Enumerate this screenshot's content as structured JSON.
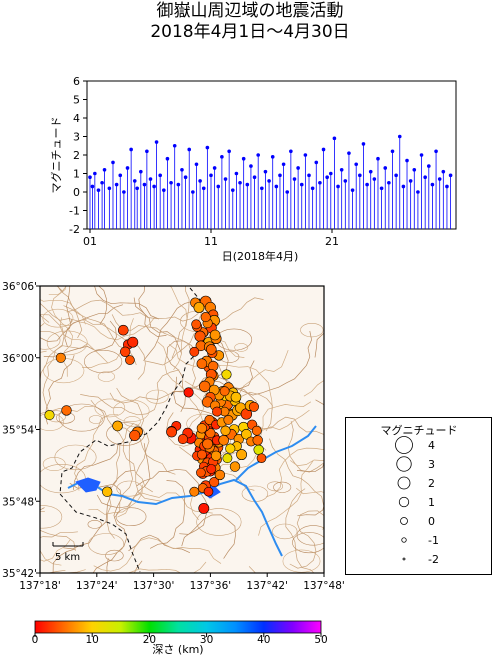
{
  "title": {
    "line1": "御嶽山周辺域の地震活動",
    "line2": "2018年4月1日〜4月30日"
  },
  "chart_data": [
    {
      "type": "stem",
      "title": "",
      "ylabel": "マグニチュード",
      "xlabel": "日(2018年4月)",
      "ylim": [
        -2,
        6
      ],
      "yticks": [
        "-2",
        "-1",
        "0",
        "1",
        "2",
        "3",
        "4",
        "5",
        "6"
      ],
      "xlim": [
        1,
        31
      ],
      "xticks": [
        {
          "day": 1,
          "label": "01"
        },
        {
          "day": 11,
          "label": "11"
        },
        {
          "day": 21,
          "label": "21"
        }
      ],
      "color": "#0000ff",
      "series": [
        {
          "day": [
            1.0,
            1.2,
            1.4,
            1.7,
            2.0,
            2.2,
            2.6,
            2.9,
            3.2,
            3.5,
            3.8,
            4.1,
            4.4,
            4.7,
            4.9,
            5.2,
            5.5,
            5.7,
            6.0,
            6.3,
            6.5,
            6.8,
            7.1,
            7.4,
            7.7,
            8.0,
            8.3,
            8.6,
            8.9,
            9.2,
            9.5,
            9.8,
            10.1,
            10.4,
            10.7,
            11.0,
            11.3,
            11.6,
            11.9,
            12.2,
            12.5,
            12.8,
            13.1,
            13.4,
            13.7,
            14.0,
            14.3,
            14.6,
            14.9,
            15.2,
            15.5,
            15.8,
            16.1,
            16.4,
            16.7,
            17.0,
            17.3,
            17.6,
            17.9,
            18.2,
            18.5,
            18.8,
            19.1,
            19.4,
            19.7,
            20.0,
            20.3,
            20.6,
            20.9,
            21.2,
            21.5,
            21.8,
            22.1,
            22.4,
            22.7,
            23.0,
            23.3,
            23.6,
            23.9,
            24.2,
            24.5,
            24.8,
            25.1,
            25.4,
            25.7,
            26.0,
            26.3,
            26.6,
            26.9,
            27.2,
            27.5,
            27.8,
            28.1,
            28.4,
            28.7,
            29.0,
            29.3,
            29.6,
            29.9,
            30.2,
            30.5,
            30.8
          ],
          "magnitude": [
            0.8,
            0.3,
            1.0,
            0.1,
            0.5,
            1.2,
            0.2,
            1.6,
            0.4,
            0.9,
            0.0,
            1.3,
            2.3,
            0.6,
            0.2,
            1.1,
            0.4,
            2.2,
            0.7,
            0.3,
            2.7,
            0.9,
            0.1,
            1.8,
            0.5,
            2.5,
            0.4,
            1.2,
            0.8,
            2.3,
            0.0,
            1.5,
            0.6,
            0.2,
            2.4,
            0.9,
            1.3,
            0.3,
            1.9,
            0.7,
            2.2,
            0.1,
            1.0,
            0.5,
            1.8,
            0.4,
            1.4,
            0.8,
            2.0,
            0.2,
            1.1,
            0.6,
            1.9,
            0.3,
            0.9,
            1.5,
            0.0,
            2.2,
            0.7,
            1.3,
            0.4,
            2.0,
            0.9,
            0.2,
            1.6,
            0.5,
            2.3,
            0.8,
            1.0,
            2.9,
            0.3,
            1.2,
            0.6,
            2.1,
            0.1,
            1.5,
            0.9,
            2.6,
            0.4,
            1.1,
            0.7,
            1.8,
            0.2,
            1.3,
            0.5,
            2.2,
            0.9,
            3.0,
            0.3,
            1.7,
            0.6,
            1.2,
            0.0,
            2.0,
            0.8,
            1.4,
            0.4,
            2.2,
            0.7,
            1.1,
            0.3,
            0.9
          ]
        }
      ]
    },
    {
      "type": "scatter",
      "title": "",
      "xlim": [
        "137°18'",
        "137°48'"
      ],
      "ylim": [
        "35°42'",
        "36°06'"
      ],
      "xticks": [
        "137°18'",
        "137°24'",
        "137°30'",
        "137°36'",
        "137°42'",
        "137°48'"
      ],
      "yticks": [
        "36°06'",
        "36°00'",
        "35°54'",
        "35°48'",
        "35°42'"
      ],
      "scale_bar": "5 km",
      "size_legend": {
        "title": "マグニチュード",
        "magnitudes": [
          "4",
          "3",
          "2",
          "1",
          "0",
          "-1",
          "-2"
        ]
      },
      "colorbar": {
        "label": "深さ (km)",
        "ticks": [
          "0",
          "10",
          "20",
          "30",
          "40",
          "50"
        ],
        "range": [
          0,
          50
        ]
      },
      "series": [
        {
          "lon_min": [
            35.5,
            36.0,
            36.2,
            35.2,
            35.8,
            36.4,
            35.6,
            36.1,
            34.9,
            35.4,
            36.3,
            35.9,
            35.1,
            36.6,
            35.7,
            36.0,
            35.3,
            36.5,
            35.8,
            36.2,
            34.6,
            35.0,
            36.8,
            35.6,
            36.3,
            35.9,
            36.7,
            35.5,
            36.1,
            34.8,
            35.2,
            36.4,
            35.7,
            36.0,
            36.9,
            35.4,
            36.2,
            35.1,
            35.8,
            36.5,
            35.3,
            36.0,
            35.6,
            36.7,
            35.9,
            36.3,
            35.0,
            35.7,
            36.1,
            36.6,
            35.5,
            35.2,
            36.4,
            35.8,
            37.0,
            35.4,
            36.2,
            35.9,
            36.6,
            35.1,
            38.0,
            37.4,
            37.8,
            38.6,
            37.1,
            38.3,
            37.6,
            38.9,
            37.9,
            38.4,
            37.3,
            38.1,
            37.7,
            38.7,
            37.5,
            39.2,
            37.2,
            38.5,
            37.9,
            39.5,
            38.2,
            37.6,
            39.0,
            38.8,
            37.4,
            38.1,
            39.3,
            37.8,
            38.6,
            39.8,
            40.4,
            40.9,
            41.1,
            35.4,
            36.3,
            35.8,
            36.9,
            37.5,
            39.8,
            40.2,
            40.6,
            40.3,
            41.0,
            41.4,
            33.9,
            33.6,
            33.1,
            32.4,
            31.9,
            35.5,
            36.0,
            36.3,
            36.4,
            36.1,
            35.7,
            35.2,
            34.9,
            35.8,
            36.6,
            34.6,
            35.0,
            36.9,
            34.3,
            35.6,
            35.1,
            36.2,
            34.4,
            34.8,
            35.5,
            34.5,
            36.5,
            35.9,
            36.3,
            36.1,
            35.9,
            35.4,
            36.4,
            36.0,
            35.7,
            36.5,
            36.7,
            36.1,
            27.3,
            27.0,
            27.5,
            27.8,
            26.8,
            20.2,
            20.8,
            19.0,
            26.2,
            33.7,
            28.3,
            31.9,
            28.0,
            25.1,
            34.3,
            35.3
          ],
          "lat_min": [
            53.5,
            52.9,
            51.8,
            53.0,
            52.1,
            53.4,
            51.6,
            52.4,
            52.3,
            51.3,
            52.7,
            51.9,
            51.5,
            52.0,
            53.8,
            51.1,
            52.7,
            51.4,
            50.9,
            53.1,
            51.8,
            53.6,
            52.5,
            52.2,
            50.8,
            53.3,
            51.5,
            50.6,
            51.6,
            52.9,
            50.3,
            52.2,
            51.2,
            50.5,
            52.9,
            52.6,
            51.0,
            51.9,
            53.9,
            50.8,
            50.9,
            53.7,
            50.5,
            53.1,
            52.5,
            51.3,
            50.4,
            52.8,
            50.7,
            51.8,
            49.3,
            49.1,
            49.6,
            48.8,
            50.2,
            54.3,
            54.6,
            54.8,
            54.4,
            54.1,
            55.3,
            55.7,
            56.1,
            56.4,
            56.3,
            55.2,
            56.8,
            55.6,
            57.5,
            57.1,
            57.2,
            56.8,
            58.6,
            56.7,
            55.5,
            55.8,
            54.6,
            54.0,
            54.8,
            54.2,
            53.6,
            53.9,
            53.2,
            52.6,
            53.1,
            52.4,
            51.9,
            51.6,
            50.9,
            53.6,
            54.4,
            53.9,
            52.3,
            57.7,
            58.5,
            59.2,
            56.9,
            57.2,
            55.3,
            56.0,
            55.9,
            53.0,
            53.1,
            51.6,
            53.3,
            53.7,
            53.2,
            54.3,
            53.9,
            64.7,
            64.2,
            63.6,
            63.1,
            62.5,
            62.9,
            62.1,
            61.8,
            61.3,
            61.6,
            62.6,
            61.0,
            60.2,
            60.5,
            59.7,
            59.5,
            60.4,
            64.6,
            64.2,
            63.4,
            62.8,
            61.9,
            60.9,
            59.3,
            58.6,
            58.0,
            57.6,
            57.3,
            56.7,
            56.3,
            56.0,
            55.5,
            60.7,
            61.1,
            60.5,
            59.8,
            61.3,
            62.3,
            60.0,
            55.6,
            55.2,
            54.3,
            57.1,
            53.8,
            53.8,
            53.5,
            48.8,
            48.8,
            47.4,
            46.0,
            46.5
          ],
          "magnitude": [
            1.4,
            1.1,
            0.8,
            1.6,
            0.9,
            1.0,
            1.3,
            0.7,
            1.2,
            0.9,
            1.5,
            1.1,
            0.8,
            1.0,
            1.2,
            0.9,
            1.3,
            1.1,
            0.8,
            1.4,
            0.9,
            1.0,
            1.2,
            0.8,
            1.1,
            1.3,
            0.9,
            1.0,
            1.2,
            0.8,
            1.1,
            0.9,
            1.3,
            1.0,
            0.8,
            1.2,
            1.0,
            0.9,
            1.1,
            1.3,
            0.8,
            1.0,
            1.2,
            0.9,
            1.1,
            1.0,
            0.8,
            1.3,
            0.9,
            1.1,
            1.2,
            0.9,
            1.0,
            0.8,
            1.1,
            1.4,
            1.2,
            1.0,
            0.9,
            1.1,
            1.3,
            1.0,
            1.4,
            1.1,
            0.9,
            1.3,
            1.0,
            1.5,
            1.2,
            0.9,
            1.1,
            1.3,
            1.0,
            1.2,
            0.8,
            1.4,
            1.0,
            1.2,
            0.9,
            1.1,
            1.3,
            1.0,
            1.1,
            0.9,
            1.2,
            1.0,
            1.3,
            0.9,
            1.1,
            1.2,
            1.0,
            0.9,
            1.1,
            0.8,
            1.2,
            1.0,
            1.4,
            0.9,
            1.5,
            1.3,
            1.0,
            0.9,
            1.1,
            0.8,
            1.7,
            1.2,
            1.0,
            0.9,
            0.8,
            1.6,
            1.4,
            1.1,
            1.5,
            1.3,
            1.0,
            1.2,
            1.4,
            1.1,
            1.3,
            1.0,
            1.2,
            1.1,
            0.9,
            1.4,
            1.2,
            1.0,
            1.1,
            1.3,
            1.0,
            0.9,
            1.2,
            1.4,
            1.1,
            1.3,
            1.0,
            1.5,
            1.2,
            1.1,
            1.4,
            1.0,
            0.9,
            1.2,
            1.0,
            1.1,
            0.8,
            1.3,
            1.2,
            1.0,
            1.1,
            1.0,
            1.2,
            1.0,
            1.3,
            1.3,
            1.4,
            1.1,
            0.9,
            1.3,
            1.1,
            1.0
          ],
          "depth_km": [
            4,
            3,
            6,
            2,
            5,
            4,
            3,
            6,
            2,
            5,
            3,
            4,
            7,
            2,
            5,
            3,
            6,
            4,
            2,
            5,
            3,
            7,
            4,
            2,
            6,
            3,
            5,
            4,
            2,
            6,
            3,
            5,
            4,
            2,
            7,
            3,
            5,
            4,
            2,
            6,
            3,
            5,
            4,
            2,
            6,
            3,
            4,
            5,
            2,
            7,
            3,
            5,
            4,
            2,
            6,
            3,
            4,
            5,
            2,
            6,
            7,
            8,
            5,
            9,
            6,
            7,
            10,
            8,
            6,
            9,
            7,
            8,
            11,
            9,
            6,
            8,
            7,
            9,
            6,
            10,
            5,
            8,
            7,
            9,
            6,
            10,
            8,
            12,
            7,
            9,
            4,
            5,
            13,
            3,
            6,
            4,
            7,
            5,
            3,
            8,
            4,
            6,
            5,
            4,
            1,
            2,
            3,
            2,
            1,
            5,
            6,
            4,
            7,
            3,
            6,
            5,
            4,
            8,
            6,
            4,
            5,
            7,
            3,
            6,
            5,
            4,
            6,
            8,
            5,
            4,
            7,
            6,
            5,
            4,
            6,
            5,
            7,
            4,
            5,
            6,
            3,
            5,
            2,
            3,
            4,
            2,
            3,
            6,
            5,
            11,
            8,
            1,
            6,
            3,
            4,
            9,
            6,
            1,
            8,
            3
          ]
        }
      ]
    }
  ]
}
